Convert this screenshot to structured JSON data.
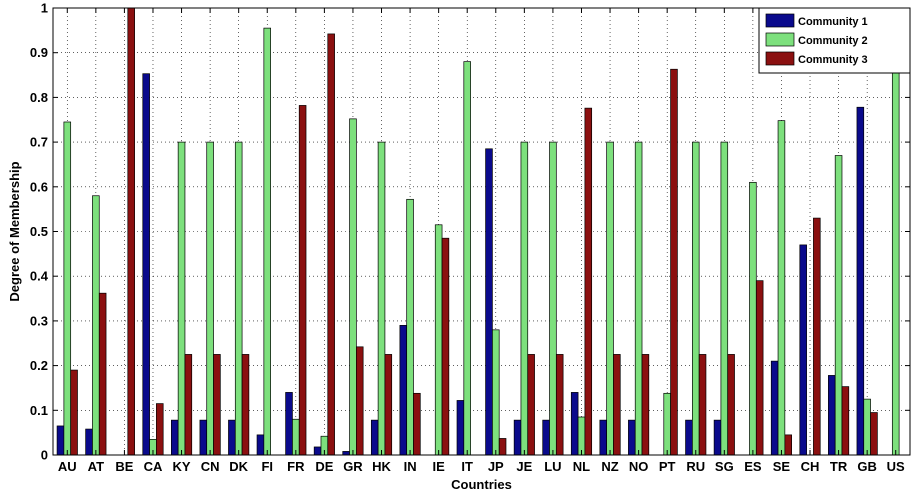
{
  "chart_data": {
    "type": "bar",
    "xlabel": "Countries",
    "ylabel": "Degree of Membership",
    "ylim": [
      0,
      1
    ],
    "yticks": [
      0,
      0.1,
      0.2,
      0.3,
      0.4,
      0.5,
      0.6,
      0.7,
      0.8,
      0.9,
      1
    ],
    "ytick_labels": [
      "0",
      "0.1",
      "0.2",
      "0.3",
      "0.4",
      "0.5",
      "0.6",
      "0.7",
      "0.8",
      "0.9",
      "1"
    ],
    "grid": true,
    "legend_position": "top-right",
    "categories": [
      "AU",
      "AT",
      "BE",
      "CA",
      "KY",
      "CN",
      "DK",
      "FI",
      "FR",
      "DE",
      "GR",
      "HK",
      "IN",
      "IE",
      "IT",
      "JP",
      "JE",
      "LU",
      "NL",
      "NZ",
      "NO",
      "PT",
      "RU",
      "SG",
      "ES",
      "SE",
      "CH",
      "TR",
      "GB",
      "US"
    ],
    "series": [
      {
        "name": "Community 1",
        "color": "#0a0a8c",
        "values": [
          0.065,
          0.058,
          0.0,
          0.853,
          0.078,
          0.078,
          0.078,
          0.045,
          0.14,
          0.018,
          0.008,
          0.078,
          0.29,
          0.0,
          0.122,
          0.685,
          0.078,
          0.078,
          0.14,
          0.078,
          0.078,
          0.0,
          0.078,
          0.078,
          0.0,
          0.21,
          0.47,
          0.178,
          0.778,
          0.0
        ]
      },
      {
        "name": "Community 2",
        "color": "#7de07d",
        "values": [
          0.745,
          0.58,
          0.0,
          0.035,
          0.7,
          0.7,
          0.7,
          0.955,
          0.08,
          0.042,
          0.752,
          0.7,
          0.572,
          0.515,
          0.88,
          0.28,
          0.7,
          0.7,
          0.085,
          0.7,
          0.7,
          0.138,
          0.7,
          0.7,
          0.61,
          0.748,
          0.0,
          0.67,
          0.125,
          1.0
        ]
      },
      {
        "name": "Community 3",
        "color": "#8b1010",
        "values": [
          0.19,
          0.362,
          1.0,
          0.115,
          0.225,
          0.225,
          0.225,
          0.0,
          0.782,
          0.942,
          0.242,
          0.225,
          0.138,
          0.485,
          0.0,
          0.037,
          0.225,
          0.225,
          0.776,
          0.225,
          0.225,
          0.863,
          0.225,
          0.225,
          0.39,
          0.045,
          0.53,
          0.153,
          0.095,
          0.0
        ]
      }
    ]
  }
}
